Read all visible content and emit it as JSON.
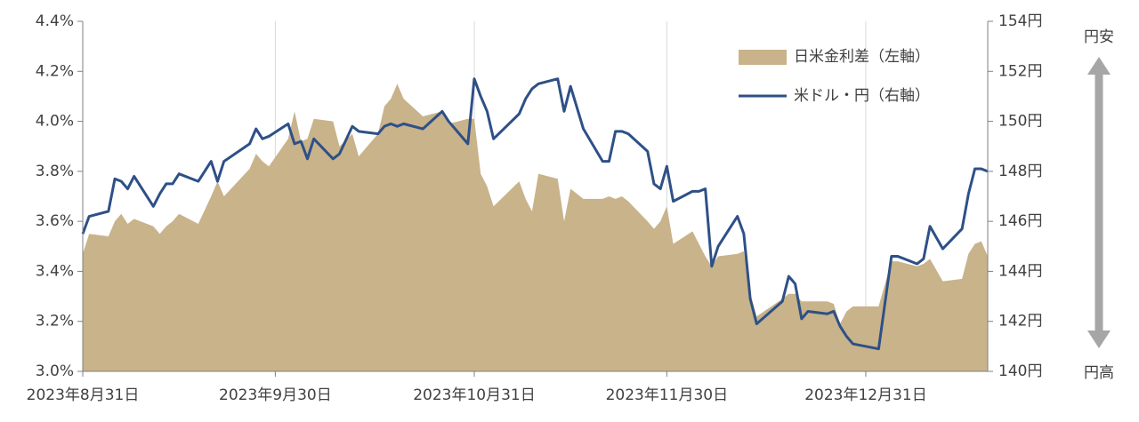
{
  "chart_data": {
    "type": "area_line",
    "x": [
      "2023-08-31",
      "2023-09-01",
      "2023-09-04",
      "2023-09-05",
      "2023-09-06",
      "2023-09-07",
      "2023-09-08",
      "2023-09-11",
      "2023-09-12",
      "2023-09-13",
      "2023-09-14",
      "2023-09-15",
      "2023-09-18",
      "2023-09-20",
      "2023-09-21",
      "2023-09-22",
      "2023-09-26",
      "2023-09-27",
      "2023-09-28",
      "2023-09-29",
      "2023-10-02",
      "2023-10-03",
      "2023-10-04",
      "2023-10-05",
      "2023-10-06",
      "2023-10-09",
      "2023-10-10",
      "2023-10-12",
      "2023-10-13",
      "2023-10-16",
      "2023-10-17",
      "2023-10-18",
      "2023-10-19",
      "2023-10-20",
      "2023-10-23",
      "2023-10-26",
      "2023-10-27",
      "2023-10-30",
      "2023-10-31",
      "2023-11-01",
      "2023-11-02",
      "2023-11-03",
      "2023-11-07",
      "2023-11-08",
      "2023-11-09",
      "2023-11-10",
      "2023-11-13",
      "2023-11-14",
      "2023-11-15",
      "2023-11-17",
      "2023-11-20",
      "2023-11-21",
      "2023-11-22",
      "2023-11-23",
      "2023-11-24",
      "2023-11-27",
      "2023-11-28",
      "2023-11-29",
      "2023-11-30",
      "2023-12-01",
      "2023-12-04",
      "2023-12-05",
      "2023-12-06",
      "2023-12-07",
      "2023-12-08",
      "2023-12-11",
      "2023-12-12",
      "2023-12-13",
      "2023-12-14",
      "2023-12-18",
      "2023-12-19",
      "2023-12-20",
      "2023-12-21",
      "2023-12-22",
      "2023-12-25",
      "2023-12-26",
      "2023-12-27",
      "2023-12-28",
      "2023-12-29",
      "2024-01-02",
      "2024-01-04",
      "2024-01-05",
      "2024-01-08",
      "2024-01-09",
      "2024-01-10",
      "2024-01-12",
      "2024-01-15",
      "2024-01-16",
      "2024-01-17",
      "2024-01-18",
      "2024-01-19"
    ],
    "series": [
      {
        "name": "日米金利差（左軸）",
        "kind": "area",
        "color": "#c8b38a",
        "axis": "y",
        "values": [
          3.47,
          3.55,
          3.54,
          3.6,
          3.63,
          3.59,
          3.61,
          3.58,
          3.55,
          3.58,
          3.6,
          3.63,
          3.59,
          3.7,
          3.76,
          3.7,
          3.81,
          3.87,
          3.84,
          3.82,
          3.93,
          4.04,
          3.92,
          3.93,
          4.01,
          4.0,
          3.9,
          3.95,
          3.86,
          3.95,
          4.06,
          4.09,
          4.15,
          4.09,
          4.02,
          4.04,
          3.99,
          4.01,
          4.01,
          3.79,
          3.74,
          3.66,
          3.76,
          3.69,
          3.64,
          3.79,
          3.77,
          3.6,
          3.73,
          3.69,
          3.69,
          3.7,
          3.69,
          3.7,
          3.68,
          3.6,
          3.57,
          3.6,
          3.66,
          3.51,
          3.56,
          3.51,
          3.46,
          3.42,
          3.46,
          3.47,
          3.48,
          3.31,
          3.22,
          3.29,
          3.31,
          3.31,
          3.28,
          3.28,
          3.28,
          3.27,
          3.19,
          3.24,
          3.26,
          3.26,
          3.44,
          3.44,
          3.42,
          3.43,
          3.45,
          3.36,
          3.37,
          3.47,
          3.51,
          3.52,
          3.46
        ]
      },
      {
        "name": "米ドル・円（右軸）",
        "kind": "line",
        "color": "#2e5087",
        "axis": "y2",
        "values": [
          145.5,
          146.2,
          146.4,
          147.7,
          147.6,
          147.3,
          147.8,
          146.6,
          147.1,
          147.5,
          147.5,
          147.9,
          147.6,
          148.4,
          147.6,
          148.4,
          149.1,
          149.7,
          149.3,
          149.4,
          149.9,
          149.1,
          149.2,
          148.5,
          149.3,
          148.5,
          148.7,
          149.8,
          149.6,
          149.5,
          149.8,
          149.9,
          149.8,
          149.9,
          149.7,
          150.4,
          150.0,
          149.1,
          151.7,
          151.0,
          150.4,
          149.3,
          150.3,
          150.9,
          151.3,
          151.5,
          151.7,
          150.4,
          151.4,
          149.7,
          148.4,
          148.4,
          149.6,
          149.6,
          149.5,
          148.8,
          147.5,
          147.3,
          148.2,
          146.8,
          147.2,
          147.2,
          147.3,
          144.2,
          145.0,
          146.2,
          145.5,
          142.9,
          141.9,
          142.8,
          143.8,
          143.5,
          142.1,
          142.4,
          142.3,
          142.4,
          141.8,
          141.4,
          141.1,
          140.9,
          144.6,
          144.6,
          144.3,
          144.5,
          145.8,
          144.9,
          145.7,
          147.1,
          148.1,
          148.1,
          148.0
        ]
      }
    ],
    "xlim": [
      "2023-08-31",
      "2024-01-19"
    ],
    "xticks": [
      {
        "value": "2023-08-31",
        "label": "2023年8月31日"
      },
      {
        "value": "2023-09-30",
        "label": "2023年9月30日"
      },
      {
        "value": "2023-10-31",
        "label": "2023年10月31日"
      },
      {
        "value": "2023-11-30",
        "label": "2023年11月30日"
      },
      {
        "value": "2023-12-31",
        "label": "2023年12月31日"
      }
    ],
    "ylim": [
      3.0,
      4.4
    ],
    "yticks": [
      {
        "value": 3.0,
        "label": "3.0%"
      },
      {
        "value": 3.2,
        "label": "3.2%"
      },
      {
        "value": 3.4,
        "label": "3.4%"
      },
      {
        "value": 3.6,
        "label": "3.6%"
      },
      {
        "value": 3.8,
        "label": "3.8%"
      },
      {
        "value": 4.0,
        "label": "4.0%"
      },
      {
        "value": 4.2,
        "label": "4.2%"
      },
      {
        "value": 4.4,
        "label": "4.4%"
      }
    ],
    "y2lim": [
      140,
      154
    ],
    "y2ticks": [
      {
        "value": 140,
        "label": "140円"
      },
      {
        "value": 142,
        "label": "142円"
      },
      {
        "value": 144,
        "label": "144円"
      },
      {
        "value": 146,
        "label": "146円"
      },
      {
        "value": 148,
        "label": "148円"
      },
      {
        "value": 150,
        "label": "150円"
      },
      {
        "value": 152,
        "label": "152円"
      },
      {
        "value": 154,
        "label": "154円"
      }
    ],
    "grid": "x",
    "legend": "upper right",
    "annotations": [
      "円安",
      "円高"
    ]
  }
}
